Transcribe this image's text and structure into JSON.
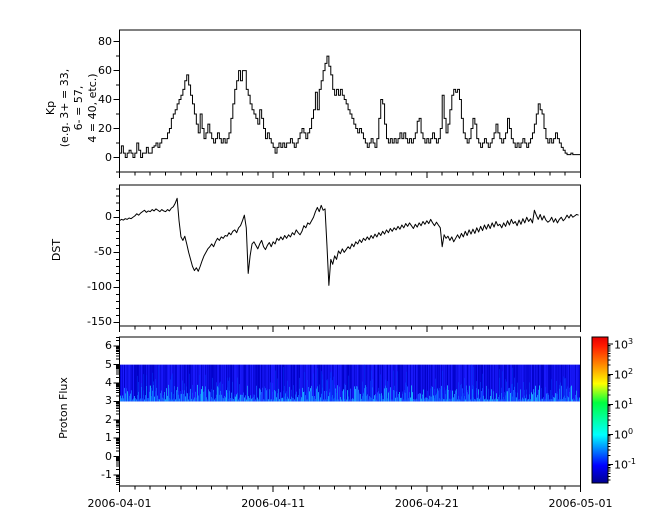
{
  "figure": {
    "background": "#ffffff",
    "frame_color": "#000000",
    "data_line_color": "#000000"
  },
  "x_axis": {
    "tick_labels": [
      "2006-04-01",
      "2006-04-11",
      "2006-04-21",
      "2006-05-01"
    ],
    "tick_days": [
      0,
      10,
      20,
      30
    ],
    "minor_step_days": 1,
    "span_days": 30
  },
  "chart_data": [
    {
      "type": "line",
      "subtype": "step",
      "name": "kp-index",
      "ylabel_lines": [
        "Kp",
        "(e.g. 3+ = 33,",
        "6- = 57,",
        "4 = 40, etc.)"
      ],
      "ylim": [
        -10,
        88
      ],
      "yticks": [
        0,
        20,
        40,
        60,
        80
      ],
      "yticklabels": [
        "0",
        "20",
        "40",
        "60",
        "80"
      ],
      "yminor_step": 10,
      "sample_step_days": 0.125,
      "values": [
        3,
        8,
        3,
        0,
        3,
        5,
        3,
        0,
        3,
        10,
        5,
        0,
        3,
        3,
        7,
        3,
        3,
        7,
        8,
        10,
        7,
        10,
        13,
        13,
        13,
        17,
        20,
        27,
        30,
        33,
        37,
        40,
        43,
        47,
        53,
        57,
        50,
        43,
        37,
        30,
        23,
        17,
        30,
        20,
        13,
        17,
        23,
        17,
        13,
        10,
        13,
        17,
        13,
        10,
        13,
        10,
        13,
        17,
        27,
        37,
        47,
        53,
        60,
        53,
        60,
        60,
        47,
        43,
        37,
        33,
        30,
        27,
        23,
        33,
        27,
        20,
        13,
        17,
        13,
        10,
        7,
        3,
        7,
        10,
        7,
        10,
        7,
        10,
        10,
        13,
        10,
        7,
        10,
        13,
        17,
        20,
        17,
        13,
        17,
        20,
        27,
        33,
        45,
        33,
        47,
        53,
        60,
        65,
        70,
        63,
        57,
        47,
        43,
        47,
        43,
        47,
        43,
        40,
        37,
        33,
        30,
        27,
        23,
        20,
        17,
        20,
        17,
        13,
        10,
        7,
        10,
        13,
        10,
        7,
        13,
        27,
        40,
        37,
        23,
        13,
        10,
        13,
        10,
        13,
        10,
        13,
        17,
        13,
        17,
        13,
        10,
        13,
        10,
        13,
        17,
        25,
        27,
        17,
        13,
        10,
        13,
        10,
        13,
        17,
        13,
        10,
        13,
        20,
        43,
        27,
        17,
        23,
        33,
        43,
        47,
        45,
        47,
        40,
        27,
        17,
        13,
        10,
        13,
        20,
        27,
        23,
        13,
        10,
        7,
        10,
        13,
        10,
        7,
        10,
        13,
        17,
        23,
        17,
        13,
        10,
        13,
        17,
        27,
        20,
        13,
        10,
        7,
        10,
        7,
        10,
        13,
        10,
        7,
        10,
        13,
        17,
        23,
        30,
        37,
        33,
        30,
        20,
        13,
        10,
        13,
        10,
        13,
        17,
        13,
        10,
        7,
        5,
        3,
        2,
        2,
        3,
        2,
        2,
        2,
        2
      ]
    },
    {
      "type": "line",
      "name": "dst-index",
      "ylabel": "DST",
      "ylim": [
        -155,
        46
      ],
      "yticks": [
        0,
        -50,
        -100,
        -150
      ],
      "yticklabels": [
        "0",
        "-50",
        "-100",
        "-150"
      ],
      "yminor_step": 10,
      "sample_step_days": 0.125,
      "values": [
        -5,
        -3,
        -4,
        -2,
        -3,
        -1,
        -2,
        0,
        2,
        5,
        3,
        6,
        8,
        10,
        7,
        9,
        8,
        11,
        9,
        12,
        10,
        8,
        11,
        9,
        8,
        11,
        9,
        13,
        15,
        20,
        27,
        -5,
        -28,
        -33,
        -27,
        -38,
        -50,
        -60,
        -70,
        -76,
        -72,
        -77,
        -70,
        -62,
        -55,
        -50,
        -45,
        -42,
        -38,
        -42,
        -35,
        -30,
        -33,
        -28,
        -30,
        -26,
        -27,
        -22,
        -25,
        -20,
        -18,
        -22,
        -15,
        -12,
        -5,
        3,
        -15,
        -80,
        -55,
        -38,
        -35,
        -40,
        -45,
        -38,
        -33,
        -42,
        -46,
        -40,
        -36,
        -42,
        -35,
        -38,
        -30,
        -33,
        -28,
        -32,
        -26,
        -30,
        -25,
        -28,
        -22,
        -25,
        -18,
        -22,
        -25,
        -20,
        -12,
        -15,
        -8,
        -10,
        -5,
        0,
        8,
        14,
        8,
        17,
        10,
        12,
        -40,
        -97,
        -60,
        -67,
        -55,
        -60,
        -48,
        -52,
        -45,
        -50,
        -46,
        -42,
        -45,
        -38,
        -42,
        -35,
        -38,
        -32,
        -36,
        -30,
        -33,
        -28,
        -32,
        -26,
        -30,
        -24,
        -28,
        -22,
        -26,
        -20,
        -24,
        -18,
        -22,
        -16,
        -20,
        -15,
        -18,
        -13,
        -17,
        -11,
        -15,
        -9,
        -13,
        -8,
        -12,
        -16,
        -10,
        -14,
        -8,
        -12,
        -6,
        -10,
        -5,
        -9,
        -3,
        -8,
        -12,
        -7,
        -11,
        -15,
        -42,
        -25,
        -30,
        -27,
        -33,
        -28,
        -35,
        -30,
        -25,
        -30,
        -23,
        -28,
        -20,
        -26,
        -18,
        -24,
        -17,
        -23,
        -15,
        -21,
        -13,
        -19,
        -11,
        -17,
        -10,
        -16,
        -8,
        -14,
        -6,
        -12,
        -10,
        -15,
        -8,
        -13,
        -5,
        -11,
        -3,
        -9,
        -6,
        -12,
        -4,
        -10,
        -2,
        -8,
        0,
        -6,
        -2,
        -8,
        10,
        3,
        -3,
        4,
        -4,
        2,
        -4,
        -7,
        -5,
        0,
        -7,
        -2,
        -8,
        -3,
        0,
        -5,
        -2,
        3,
        -1,
        4,
        0,
        2,
        4,
        3
      ]
    },
    {
      "type": "heatmap",
      "name": "proton-flux-spectrogram",
      "ylabel": "Proton Flux",
      "yscale": "log-exponent",
      "ylim_exp": [
        -1.6,
        6.5
      ],
      "yticks_exp": [
        6,
        5,
        4,
        3,
        2,
        1,
        0,
        -1
      ],
      "yticklabels": [
        "6",
        "5",
        "4",
        "3",
        "2",
        "1",
        "0",
        "-1"
      ],
      "band": {
        "e_low": 3.0,
        "e_high": 5.0,
        "base_color": "#0000c8",
        "streak_color": "#2e7bff",
        "description": "continuous low-flux band with vertical bright-blue streaks near lower edge"
      },
      "colorbar": {
        "colormap": "jet",
        "base": "10",
        "tick_exponents": [
          3,
          2,
          1,
          0,
          -1
        ],
        "lim_exp": [
          -1.62,
          3.24
        ],
        "stops": [
          [
            0.0,
            "#00008f"
          ],
          [
            0.12,
            "#0000ff"
          ],
          [
            0.33,
            "#00ffff"
          ],
          [
            0.55,
            "#00ff40"
          ],
          [
            0.68,
            "#ffff00"
          ],
          [
            0.82,
            "#ff8000"
          ],
          [
            0.94,
            "#ff1a00"
          ],
          [
            1.0,
            "#e60000"
          ]
        ]
      }
    }
  ]
}
